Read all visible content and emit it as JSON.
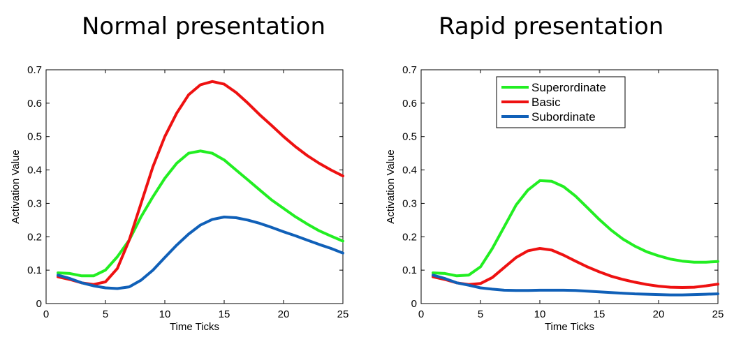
{
  "titles": {
    "left": "Normal presentation",
    "right": "Rapid presentation"
  },
  "chart_data": [
    {
      "type": "line",
      "title": "Normal presentation",
      "xlabel": "Time Ticks",
      "ylabel": "Activation Value",
      "xlim": [
        0,
        25
      ],
      "ylim": [
        0,
        0.7
      ],
      "xticks": [
        0,
        5,
        10,
        15,
        20,
        25
      ],
      "yticks": [
        0,
        0.1,
        0.2,
        0.3,
        0.4,
        0.5,
        0.6,
        0.7
      ],
      "xtick_labels": [
        "0",
        "5",
        "10",
        "15",
        "20",
        "25"
      ],
      "ytick_labels": [
        "0",
        "0.1",
        "0.2",
        "0.3",
        "0.4",
        "0.5",
        "0.6",
        "0.7"
      ],
      "grid": false,
      "x": [
        1,
        2,
        3,
        4,
        5,
        6,
        7,
        8,
        9,
        10,
        11,
        12,
        13,
        14,
        15,
        16,
        17,
        18,
        19,
        20,
        21,
        22,
        23,
        24,
        25
      ],
      "series": [
        {
          "name": "Superordinate",
          "color": "#22ee22",
          "values": [
            0.092,
            0.09,
            0.083,
            0.083,
            0.1,
            0.14,
            0.19,
            0.26,
            0.32,
            0.375,
            0.42,
            0.45,
            0.457,
            0.45,
            0.43,
            0.4,
            0.37,
            0.34,
            0.31,
            0.285,
            0.26,
            0.238,
            0.218,
            0.202,
            0.187
          ]
        },
        {
          "name": "Basic",
          "color": "#ee1111",
          "values": [
            0.08,
            0.072,
            0.062,
            0.057,
            0.065,
            0.105,
            0.19,
            0.3,
            0.41,
            0.5,
            0.57,
            0.625,
            0.655,
            0.665,
            0.657,
            0.632,
            0.6,
            0.565,
            0.533,
            0.5,
            0.47,
            0.443,
            0.42,
            0.4,
            0.382
          ]
        },
        {
          "name": "Subordinate",
          "color": "#1060b8",
          "values": [
            0.085,
            0.075,
            0.062,
            0.053,
            0.047,
            0.045,
            0.05,
            0.07,
            0.1,
            0.138,
            0.175,
            0.208,
            0.235,
            0.252,
            0.259,
            0.257,
            0.25,
            0.24,
            0.228,
            0.215,
            0.203,
            0.19,
            0.177,
            0.165,
            0.151
          ]
        }
      ]
    },
    {
      "type": "line",
      "title": "Rapid presentation",
      "xlabel": "Time Ticks",
      "ylabel": "Activation Value",
      "xlim": [
        0,
        25
      ],
      "ylim": [
        0,
        0.7
      ],
      "xticks": [
        0,
        5,
        10,
        15,
        20,
        25
      ],
      "yticks": [
        0,
        0.1,
        0.2,
        0.3,
        0.4,
        0.5,
        0.6,
        0.7
      ],
      "xtick_labels": [
        "0",
        "5",
        "10",
        "15",
        "20",
        "25"
      ],
      "ytick_labels": [
        "0",
        "0.1",
        "0.2",
        "0.3",
        "0.4",
        "0.5",
        "0.6",
        "0.7"
      ],
      "grid": false,
      "legend": "top-center",
      "x": [
        1,
        2,
        3,
        4,
        5,
        6,
        7,
        8,
        9,
        10,
        11,
        12,
        13,
        14,
        15,
        16,
        17,
        18,
        19,
        20,
        21,
        22,
        23,
        24,
        25
      ],
      "series": [
        {
          "name": "Superordinate",
          "color": "#22ee22",
          "values": [
            0.092,
            0.09,
            0.083,
            0.085,
            0.11,
            0.165,
            0.23,
            0.295,
            0.34,
            0.368,
            0.366,
            0.35,
            0.322,
            0.287,
            0.252,
            0.22,
            0.193,
            0.172,
            0.155,
            0.143,
            0.133,
            0.127,
            0.124,
            0.124,
            0.126
          ]
        },
        {
          "name": "Basic",
          "color": "#ee1111",
          "values": [
            0.08,
            0.072,
            0.062,
            0.057,
            0.06,
            0.078,
            0.108,
            0.138,
            0.158,
            0.165,
            0.16,
            0.145,
            0.127,
            0.11,
            0.095,
            0.082,
            0.072,
            0.064,
            0.057,
            0.052,
            0.049,
            0.048,
            0.049,
            0.053,
            0.058
          ]
        },
        {
          "name": "Subordinate",
          "color": "#1060b8",
          "values": [
            0.085,
            0.075,
            0.062,
            0.055,
            0.047,
            0.043,
            0.04,
            0.039,
            0.039,
            0.04,
            0.04,
            0.04,
            0.039,
            0.037,
            0.035,
            0.033,
            0.031,
            0.029,
            0.028,
            0.027,
            0.026,
            0.026,
            0.027,
            0.028,
            0.029
          ]
        }
      ]
    }
  ]
}
